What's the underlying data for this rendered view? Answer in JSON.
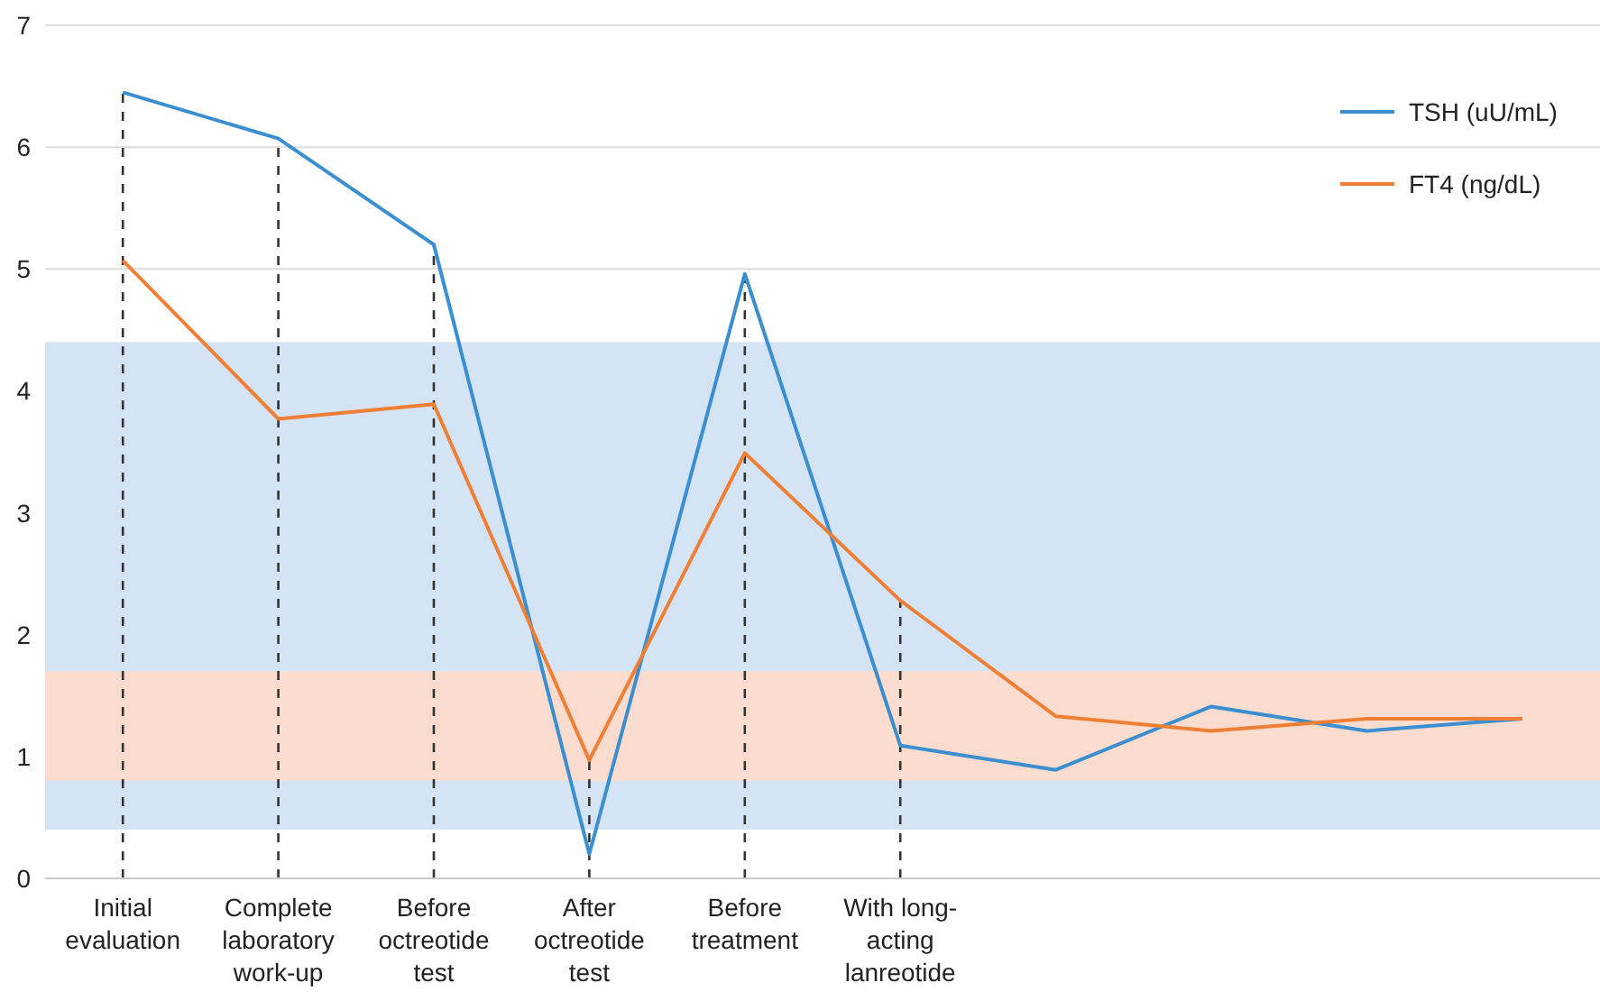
{
  "chart_data": {
    "type": "line",
    "categories": [
      "Initial evaluation",
      "Complete laboratory work-up",
      "Before octreotide test",
      "After octreotide test",
      "Before treatment",
      "With long-acting lanreotide",
      null,
      null,
      null,
      null
    ],
    "series": [
      {
        "name": "TSH (uU/mL)",
        "color": "#3b8fd0",
        "values": [
          6.45,
          6.07,
          5.2,
          0.2,
          4.96,
          1.09,
          0.89,
          1.41,
          1.21,
          1.31
        ]
      },
      {
        "name": "FT4 (ng/dL)",
        "color": "#f07f36",
        "values": [
          5.07,
          3.77,
          3.89,
          0.97,
          3.49,
          2.28,
          1.33,
          1.21,
          1.31,
          1.31
        ]
      }
    ],
    "ylim": [
      0,
      7
    ],
    "yticks": [
      0,
      1,
      2,
      3,
      4,
      5,
      6,
      7
    ],
    "bands": [
      {
        "axis": "y",
        "from": 0.4,
        "to": 4.4,
        "color": "#d4e4f4"
      },
      {
        "axis": "y",
        "from": 0.8,
        "to": 1.7,
        "color": "#fcdccf"
      }
    ],
    "ref_lines": [
      {
        "axis": "x",
        "value": "Initial evaluation",
        "color": "#333333",
        "line_style": "dashed"
      },
      {
        "axis": "x",
        "value": "Complete laboratory work-up",
        "color": "#333333",
        "line_style": "dashed"
      },
      {
        "axis": "x",
        "value": "Before octreotide test",
        "color": "#333333",
        "line_style": "dashed"
      },
      {
        "axis": "x",
        "value": "After octreotide test",
        "color": "#333333",
        "line_style": "dashed"
      },
      {
        "axis": "x",
        "value": "Before treatment",
        "color": "#333333",
        "line_style": "dashed"
      },
      {
        "axis": "x",
        "value": "With long-acting lanreotide",
        "color": "#333333",
        "line_style": "dashed"
      }
    ],
    "grid": "y",
    "legend": "top right",
    "marker": "none",
    "line_style": "solid"
  }
}
